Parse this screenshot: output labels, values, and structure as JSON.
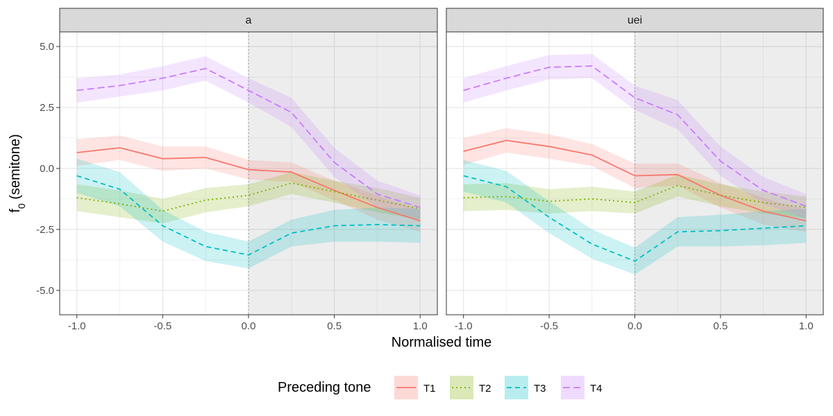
{
  "chart_data": {
    "type": "line",
    "xlabel": "Normalised time",
    "ylabel_main": "f",
    "ylabel_sub": "0",
    "ylabel_rest": " (semitone)",
    "xlim": [
      -1.1,
      1.1
    ],
    "ylim": [
      -6.0,
      5.6
    ],
    "x_ticks": [
      -1.0,
      -0.5,
      0.0,
      0.5,
      1.0
    ],
    "x_tick_labels": [
      "-1.0",
      "-0.5",
      "0.0",
      "0.5",
      "1.0"
    ],
    "y_ticks": [
      5.0,
      2.5,
      0.0,
      -2.5,
      -5.0
    ],
    "y_tick_labels": [
      "5.0",
      "2.5",
      "0.0",
      "-2.5",
      "-5.0"
    ],
    "grid": true,
    "shaded_region_x": [
      0.0,
      1.1
    ],
    "reference_line_x": 0.0,
    "legend": {
      "position": "bottom",
      "title": "Preceding tone",
      "entries": [
        "T1",
        "T2",
        "T3",
        "T4"
      ]
    },
    "colors": {
      "T1": "#F8766D",
      "T2": "#7CAE00",
      "T3": "#00BFC4",
      "T4": "#C77CFF"
    },
    "dash": {
      "T1": "solid",
      "T2": "dotted",
      "T3": "dashed",
      "T4": "longdash"
    },
    "x": [
      -1.0,
      -0.75,
      -0.5,
      -0.25,
      0.0,
      0.25,
      0.5,
      0.75,
      1.0
    ],
    "panels": [
      {
        "name": "a",
        "series": [
          {
            "name": "T1",
            "values": [
              0.65,
              0.85,
              0.4,
              0.45,
              -0.05,
              -0.15,
              -0.9,
              -1.6,
              -2.15
            ],
            "lower": [
              0.1,
              0.35,
              -0.1,
              0.0,
              -0.45,
              -0.55,
              -1.3,
              -2.1,
              -2.6
            ],
            "upper": [
              1.2,
              1.35,
              0.9,
              0.9,
              0.35,
              0.25,
              -0.5,
              -1.1,
              -1.7
            ]
          },
          {
            "name": "T2",
            "values": [
              -1.2,
              -1.45,
              -1.75,
              -1.3,
              -1.1,
              -0.6,
              -0.95,
              -1.3,
              -1.65
            ],
            "lower": [
              -1.75,
              -2.0,
              -2.25,
              -1.8,
              -1.55,
              -1.05,
              -1.4,
              -1.8,
              -2.1
            ],
            "upper": [
              -0.65,
              -0.9,
              -1.25,
              -0.8,
              -0.65,
              -0.15,
              -0.5,
              -0.8,
              -1.2
            ]
          },
          {
            "name": "T3",
            "values": [
              -0.3,
              -0.85,
              -2.35,
              -3.2,
              -3.55,
              -2.65,
              -2.35,
              -2.3,
              -2.35
            ],
            "lower": [
              -1.0,
              -1.55,
              -3.0,
              -3.8,
              -4.1,
              -3.2,
              -3.0,
              -3.0,
              -3.05
            ],
            "upper": [
              0.4,
              -0.15,
              -1.7,
              -2.6,
              -3.0,
              -2.1,
              -1.7,
              -1.6,
              -1.65
            ]
          },
          {
            "name": "T4",
            "values": [
              3.2,
              3.4,
              3.7,
              4.1,
              3.2,
              2.3,
              0.25,
              -1.05,
              -1.6
            ],
            "lower": [
              2.7,
              2.95,
              3.2,
              3.6,
              2.7,
              1.7,
              -0.35,
              -1.6,
              -2.1
            ],
            "upper": [
              3.7,
              3.85,
              4.2,
              4.6,
              3.7,
              2.9,
              0.85,
              -0.5,
              -1.1
            ]
          }
        ]
      },
      {
        "name": "uei",
        "series": [
          {
            "name": "T1",
            "values": [
              0.7,
              1.15,
              0.9,
              0.55,
              -0.3,
              -0.25,
              -1.1,
              -1.75,
              -2.15
            ],
            "lower": [
              0.15,
              0.65,
              0.4,
              0.1,
              -0.8,
              -0.7,
              -1.6,
              -2.3,
              -2.6
            ],
            "upper": [
              1.25,
              1.65,
              1.4,
              1.0,
              0.2,
              0.2,
              -0.6,
              -1.2,
              -1.7
            ]
          },
          {
            "name": "T2",
            "values": [
              -1.2,
              -1.15,
              -1.35,
              -1.25,
              -1.4,
              -0.7,
              -1.1,
              -1.4,
              -1.6
            ],
            "lower": [
              -1.75,
              -1.7,
              -1.85,
              -1.75,
              -1.85,
              -1.15,
              -1.55,
              -1.85,
              -2.05
            ],
            "upper": [
              -0.65,
              -0.6,
              -0.85,
              -0.75,
              -0.95,
              -0.25,
              -0.65,
              -0.95,
              -1.15
            ]
          },
          {
            "name": "T3",
            "values": [
              -0.3,
              -0.75,
              -2.0,
              -3.1,
              -3.8,
              -2.6,
              -2.55,
              -2.45,
              -2.35
            ],
            "lower": [
              -0.95,
              -1.4,
              -2.65,
              -3.7,
              -4.35,
              -3.2,
              -3.2,
              -3.15,
              -3.05
            ],
            "upper": [
              0.35,
              -0.1,
              -1.35,
              -2.5,
              -3.25,
              -2.0,
              -1.9,
              -1.75,
              -1.65
            ]
          },
          {
            "name": "T4",
            "values": [
              3.2,
              3.7,
              4.15,
              4.2,
              2.9,
              2.2,
              0.3,
              -0.9,
              -1.55
            ],
            "lower": [
              2.7,
              3.2,
              3.65,
              3.7,
              2.4,
              1.6,
              -0.3,
              -1.45,
              -2.05
            ],
            "upper": [
              3.7,
              4.2,
              4.65,
              4.7,
              3.4,
              2.8,
              0.9,
              -0.35,
              -1.05
            ]
          }
        ]
      }
    ]
  }
}
